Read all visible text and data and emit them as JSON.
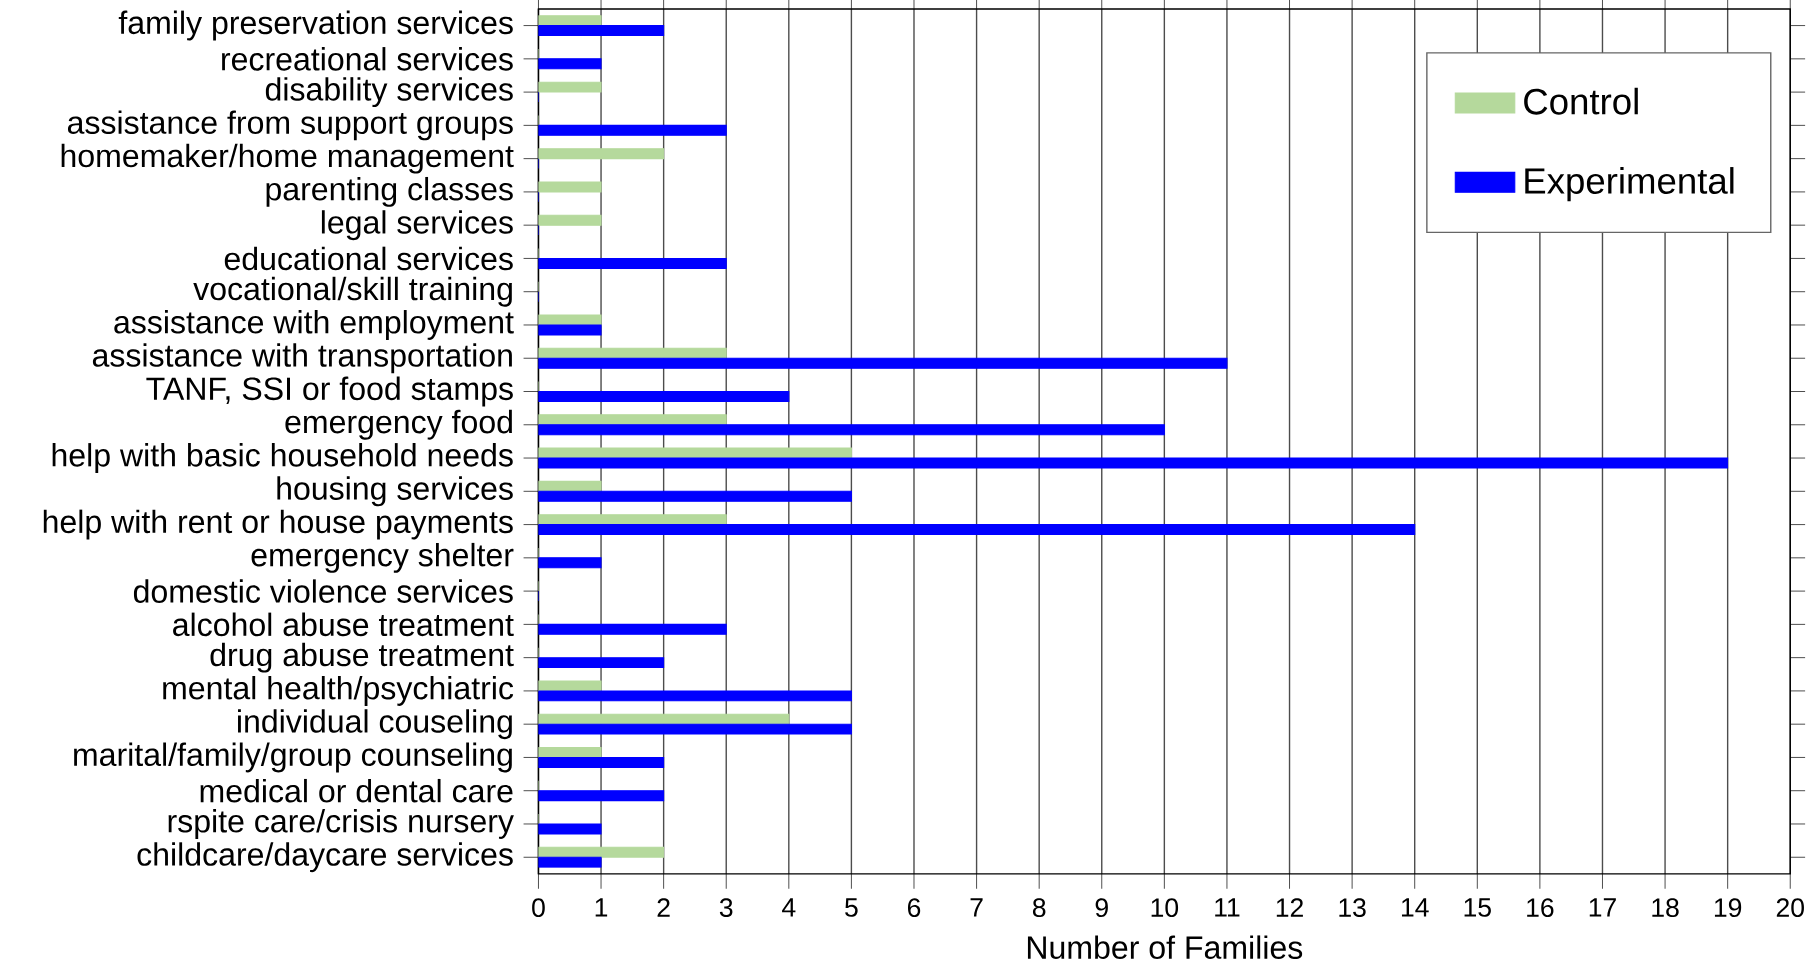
{
  "chart_data": {
    "type": "bar",
    "orientation": "horizontal",
    "xlabel": "Number of Families",
    "categories": [
      "family preservation services",
      "recreational services",
      "disability services",
      "assistance from support groups",
      "homemaker/home management",
      "parenting classes",
      "legal services",
      "educational services",
      "vocational/skill training",
      "assistance with employment",
      "assistance with transportation",
      "TANF, SSI or food stamps",
      "emergency food",
      "help with basic household needs",
      "housing services",
      "help with rent or house payments",
      "emergency shelter",
      "domestic violence services",
      "alcohol abuse treatment",
      "drug abuse treatment",
      "mental health/psychiatric",
      "individual couseling",
      "marital/family/group counseling",
      "medical or dental care",
      "rspite care/crisis nursery",
      "childcare/daycare services"
    ],
    "series": [
      {
        "name": "Control",
        "color": "#b5d99c",
        "values": [
          1,
          0,
          1,
          0,
          2,
          1,
          1,
          0,
          0,
          1,
          3,
          0,
          3,
          5,
          1,
          3,
          0,
          0,
          0,
          0,
          1,
          4,
          1,
          0,
          0,
          2
        ]
      },
      {
        "name": "Experimental",
        "color": "#0000ff",
        "values": [
          2,
          1,
          0,
          3,
          0,
          0,
          0,
          3,
          0,
          1,
          11,
          4,
          10,
          19,
          5,
          14,
          1,
          0,
          3,
          2,
          5,
          5,
          2,
          2,
          1,
          1
        ]
      }
    ],
    "xlim": [
      0,
      20
    ],
    "xticks": [
      0,
      1,
      2,
      3,
      4,
      5,
      6,
      7,
      8,
      9,
      10,
      11,
      12,
      13,
      14,
      15,
      16,
      17,
      18,
      19,
      20
    ],
    "grid": "x",
    "legend": "top right"
  }
}
